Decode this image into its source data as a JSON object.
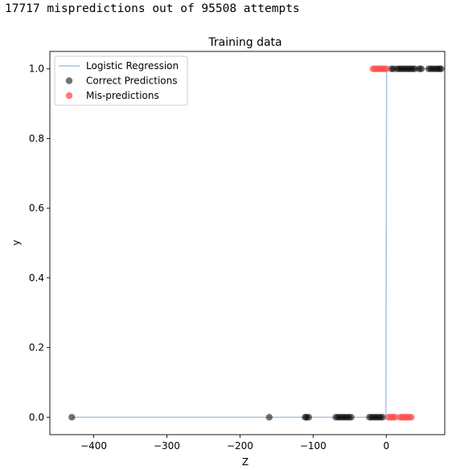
{
  "output": {
    "message": "17717 mispredictions out of 95508 attempts"
  },
  "chart_data": {
    "type": "scatter",
    "title": "Training data",
    "xlabel": "Z",
    "ylabel": "y",
    "xlim": [
      -460,
      80
    ],
    "ylim": [
      -0.05,
      1.05
    ],
    "x_ticks": [
      -400,
      -300,
      -200,
      -100,
      0
    ],
    "x_tick_labels": [
      "−400",
      "−300",
      "−200",
      "−100",
      "0"
    ],
    "y_ticks": [
      0.0,
      0.2,
      0.4,
      0.6,
      0.8,
      1.0
    ],
    "y_tick_labels": [
      "0.0",
      "0.2",
      "0.4",
      "0.6",
      "0.8",
      "1.0"
    ],
    "grid": false,
    "legend_position": "top-left",
    "series": [
      {
        "name": "Logistic Regression",
        "kind": "line",
        "color": "#a8c4e0",
        "x": [
          -430,
          -0.5,
          0,
          0.5,
          75
        ],
        "y": [
          0.0,
          0.0,
          0.5,
          1.0,
          1.0
        ]
      },
      {
        "name": "Correct Predictions",
        "kind": "scatter",
        "color": "#000000",
        "opacity": 0.55,
        "x": [
          -430,
          -160,
          -111,
          -109,
          -106,
          -69,
          -66,
          -63,
          -60,
          -57,
          -54,
          -51,
          -48,
          -23,
          -20,
          -17,
          -14,
          -11,
          -8,
          -5,
          7,
          10,
          15,
          18,
          21,
          24,
          27,
          30,
          33,
          36,
          39,
          45,
          48,
          58,
          61,
          64,
          67,
          70,
          73,
          75
        ],
        "y": [
          0,
          0,
          0,
          0,
          0,
          0,
          0,
          0,
          0,
          0,
          0,
          0,
          0,
          0,
          0,
          0,
          0,
          0,
          0,
          0,
          1,
          1,
          1,
          1,
          1,
          1,
          1,
          1,
          1,
          1,
          1,
          1,
          1,
          1,
          1,
          1,
          1,
          1,
          1,
          1
        ]
      },
      {
        "name": "Mis-predictions",
        "kind": "scatter",
        "color": "#ff4d4d",
        "opacity": 0.75,
        "x": [
          -18,
          -15,
          -12,
          -9,
          -6,
          -3,
          0,
          3,
          6,
          9,
          12,
          19,
          22,
          25,
          28,
          31,
          34
        ],
        "y": [
          1,
          1,
          1,
          1,
          1,
          1,
          1,
          0,
          0,
          0,
          0,
          0,
          0,
          0,
          0,
          0,
          0
        ]
      }
    ]
  }
}
